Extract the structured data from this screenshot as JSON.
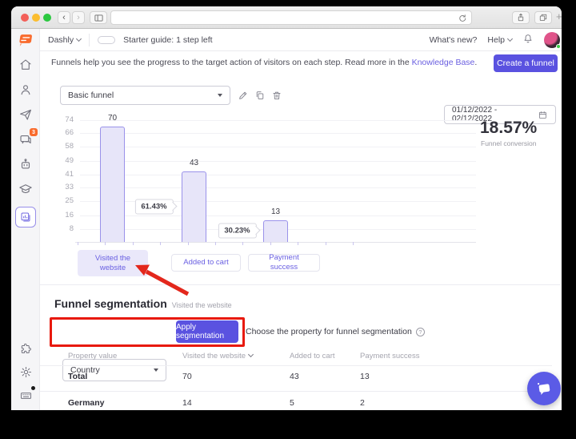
{
  "colors": {
    "accent_purple": "#5a52e0",
    "bar_fill": "#e7e5f9",
    "bar_border": "#9a92ea",
    "annotation_red": "#e3271c",
    "progress_green": "#56c85c",
    "brand_orange": "#f96b2d"
  },
  "browser_chrome": {
    "back_label": "‹",
    "forward_label": "›",
    "new_tab_label": "+"
  },
  "app_header": {
    "app_name": "Dashly",
    "starter_guide_label": "Starter guide: 1 step left",
    "whats_new_label": "What's new?",
    "help_label": "Help"
  },
  "sidebar": {
    "chat_badge_count": "3"
  },
  "banner": {
    "text": "Funnels help you see the progress to the target action of visitors on each step. Read more in the ",
    "link_label": "Knowledge Base",
    "period": ".",
    "create_funnel_label": "Create a funnel"
  },
  "controls": {
    "funnel_name": "Basic funnel",
    "date_range": "01/12/2022 - 02/12/2022"
  },
  "chart_data": {
    "type": "bar",
    "categories": [
      "Visited the website",
      "Added to cart",
      "Payment success"
    ],
    "values": [
      70,
      43,
      13
    ],
    "value_labels": [
      "70",
      "43",
      "13"
    ],
    "step_conversion_labels": [
      "61.43%",
      "30.23%"
    ],
    "yticks": [
      74,
      66,
      58,
      49,
      41,
      33,
      25,
      16,
      8
    ],
    "ylim": [
      0,
      77
    ],
    "grid": true,
    "legend": "none",
    "total_conversion": "18.57%",
    "total_conversion_caption": "Funnel conversion"
  },
  "segmentation": {
    "title": "Funnel segmentation",
    "subtitle": "Visited the website",
    "property_value": "Country",
    "apply_label": "Apply segmentation",
    "hint": "Choose the property for funnel segmentation"
  },
  "table": {
    "columns": [
      "Property value",
      "Visited the website",
      "Added to cart",
      "Payment success"
    ],
    "sorted_column_index": 1,
    "rows": [
      {
        "name": "Total",
        "values": [
          "70",
          "43",
          "13"
        ]
      },
      {
        "name": "Germany",
        "values": [
          "14",
          "5",
          "2"
        ]
      }
    ]
  }
}
